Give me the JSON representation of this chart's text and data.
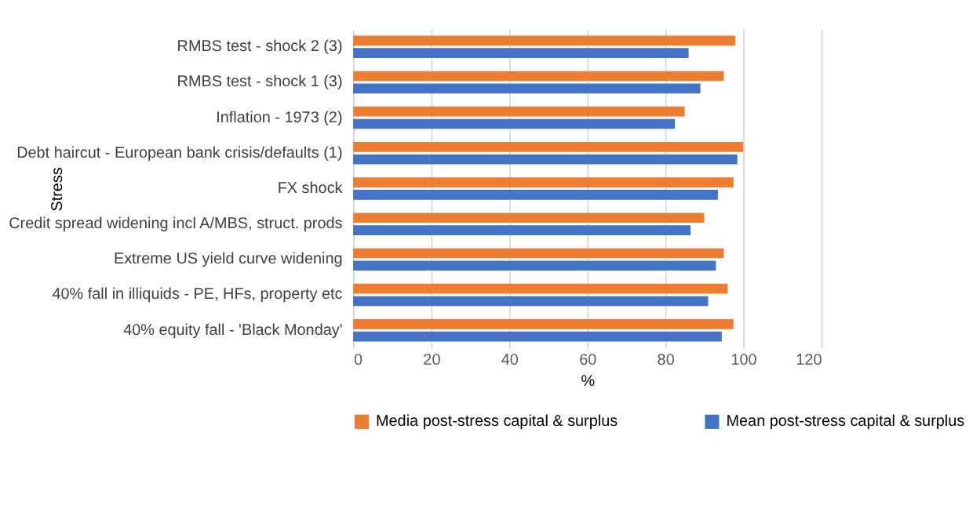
{
  "chart_data": {
    "type": "bar",
    "orientation": "horizontal",
    "xlabel": "%",
    "ylabel": "Stress",
    "categories": [
      "RMBS test - shock 2 (3)",
      "RMBS test - shock 1 (3)",
      "Inflation - 1973 (2)",
      "Debt haircut - European bank crisis/defaults (1)",
      "FX shock",
      "Credit spread widening incl A/MBS, struct. prods",
      "Extreme US yield curve widening",
      "40% fall in illiquids - PE, HFs, property etc",
      "40% equity fall - 'Black Monday'"
    ],
    "series": [
      {
        "name": "Media post-stress capital & surplus",
        "color": "#ed7d31",
        "values": [
          98,
          95,
          85,
          100,
          97.5,
          90,
          95,
          96,
          97.5
        ]
      },
      {
        "name": "Mean post-stress capital & surplus",
        "color": "#4472c4",
        "values": [
          86,
          89,
          82.5,
          98.5,
          93.5,
          86.5,
          93,
          91,
          94.5
        ]
      }
    ],
    "xlim": [
      0,
      120
    ],
    "xticks": [
      0,
      20,
      40,
      60,
      80,
      100,
      120
    ],
    "grid": "x",
    "legend": "bottom"
  }
}
